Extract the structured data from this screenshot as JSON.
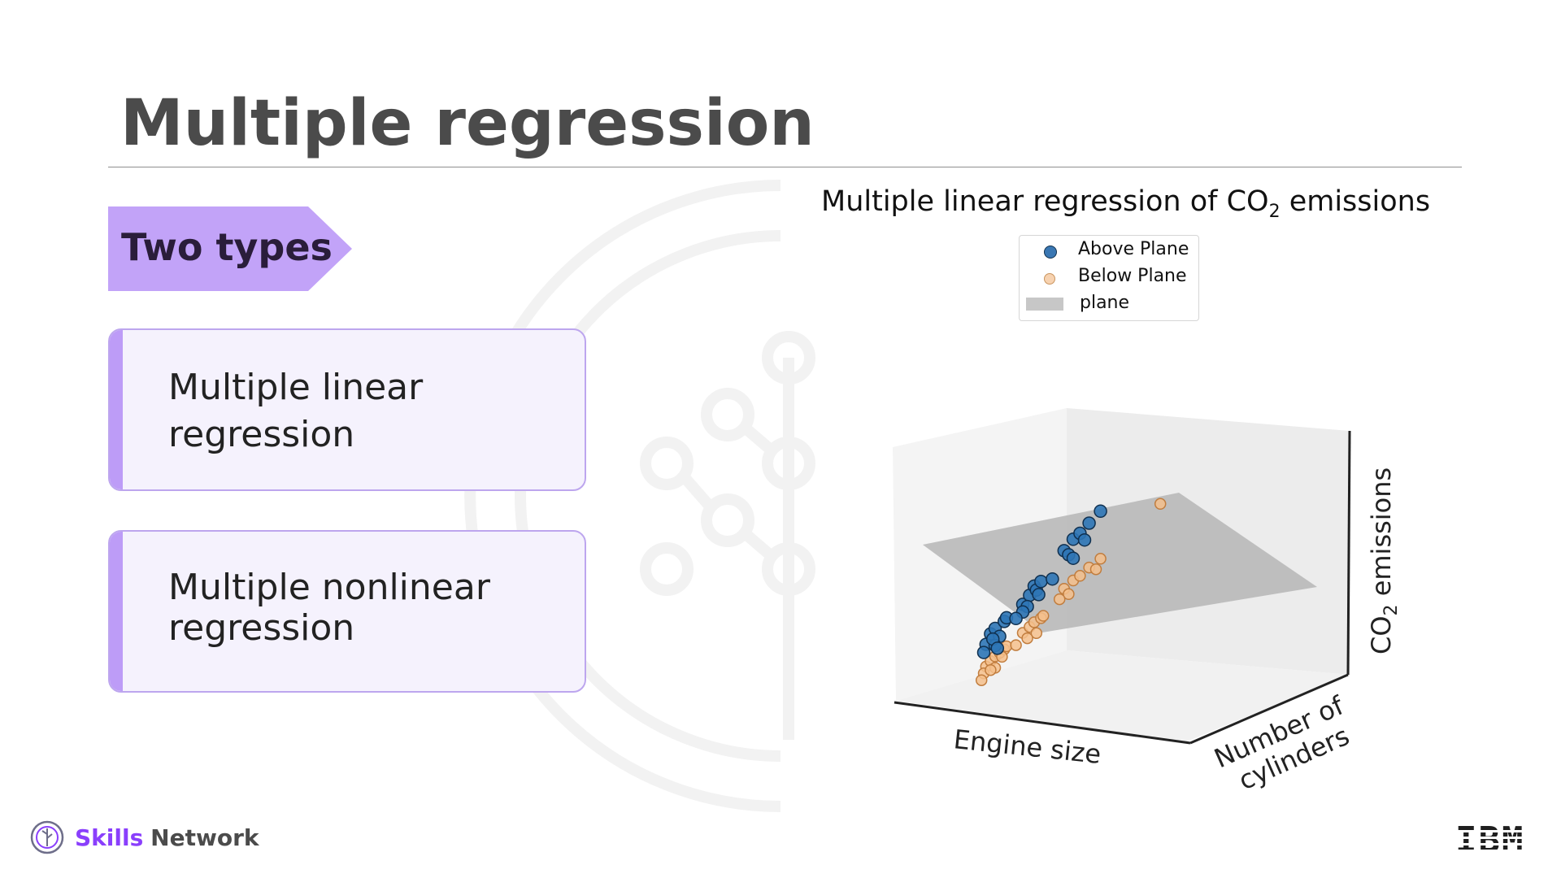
{
  "slide": {
    "title": "Multiple regression",
    "tag": "Two types"
  },
  "cards": [
    {
      "lines": [
        "Multiple linear",
        "regression"
      ]
    },
    {
      "lines": [
        "Multiple nonlinear",
        "regression"
      ]
    }
  ],
  "footer": {
    "brand_skills": "Skills",
    "brand_network": "Network",
    "ibm": "IBM"
  },
  "colors": {
    "accent_purple": "#bd9cf7",
    "tag_purple": "#c2a3f8",
    "above_plane": "#1f77b4",
    "below_plane": "#f5b97f",
    "plane": "#c7c7c7"
  },
  "chart_data": {
    "type": "scatter",
    "title_main": "Multiple linear regression of CO",
    "title_sub": "2",
    "title_tail": " emissions",
    "xlabel": "Engine size",
    "ylabel_line1": "Number of",
    "ylabel_line2": "cylinders",
    "zlabel_main": "CO",
    "zlabel_sub": "2",
    "zlabel_tail": " emissions",
    "legend": {
      "placement": "upper-center",
      "entries": [
        {
          "label": "Above Plane",
          "kind": "point",
          "color": "#1f77b4"
        },
        {
          "label": "Below Plane",
          "kind": "point",
          "color": "#f5b97f"
        },
        {
          "label": "plane",
          "kind": "patch",
          "color": "#c7c7c7"
        }
      ]
    },
    "grid": false,
    "series": [
      {
        "name": "Above Plane",
        "points": [
          [
            1.6,
            4,
            240
          ],
          [
            1.8,
            4,
            255
          ],
          [
            2.0,
            4,
            262
          ],
          [
            2.2,
            4,
            248
          ],
          [
            2.4,
            4,
            270
          ],
          [
            2.0,
            4,
            235
          ],
          [
            1.5,
            4,
            228
          ],
          [
            3.0,
            6,
            300
          ],
          [
            3.3,
            6,
            312
          ],
          [
            3.5,
            6,
            325
          ],
          [
            3.6,
            6,
            318
          ],
          [
            3.8,
            6,
            330
          ],
          [
            3.2,
            6,
            295
          ],
          [
            3.0,
            6,
            288
          ],
          [
            4.6,
            8,
            380
          ],
          [
            5.0,
            8,
            395
          ],
          [
            5.3,
            8,
            402
          ],
          [
            5.7,
            8,
            415
          ],
          [
            6.2,
            8,
            430
          ],
          [
            4.8,
            8,
            372
          ],
          [
            5.5,
            8,
            390
          ],
          [
            2.5,
            4,
            275
          ],
          [
            2.7,
            6,
            280
          ],
          [
            3.7,
            6,
            310
          ],
          [
            4.3,
            6,
            330
          ],
          [
            5.0,
            8,
            365
          ],
          [
            1.9,
            4,
            246
          ],
          [
            2.1,
            4,
            230
          ]
        ]
      },
      {
        "name": "Below Plane",
        "points": [
          [
            1.6,
            4,
            205
          ],
          [
            1.8,
            4,
            212
          ],
          [
            2.0,
            4,
            218
          ],
          [
            2.2,
            4,
            222
          ],
          [
            2.4,
            4,
            226
          ],
          [
            2.0,
            4,
            200
          ],
          [
            1.5,
            4,
            195
          ],
          [
            3.0,
            6,
            255
          ],
          [
            3.3,
            6,
            262
          ],
          [
            3.5,
            6,
            268
          ],
          [
            3.6,
            6,
            250
          ],
          [
            3.8,
            6,
            272
          ],
          [
            3.2,
            6,
            245
          ],
          [
            2.5,
            4,
            230
          ],
          [
            4.6,
            8,
            320
          ],
          [
            5.0,
            8,
            330
          ],
          [
            5.3,
            8,
            335
          ],
          [
            5.7,
            8,
            345
          ],
          [
            6.2,
            8,
            355
          ],
          [
            4.8,
            8,
            310
          ],
          [
            8.4,
            12,
            440
          ],
          [
            1.4,
            4,
            185
          ],
          [
            2.7,
            6,
            238
          ],
          [
            3.9,
            6,
            275
          ],
          [
            4.4,
            8,
            305
          ],
          [
            6.0,
            8,
            340
          ],
          [
            1.8,
            4,
            198
          ],
          [
            2.3,
            4,
            215
          ]
        ]
      }
    ],
    "plane": {
      "label": "plane"
    }
  }
}
